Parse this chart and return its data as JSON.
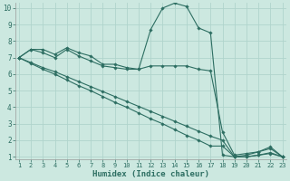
{
  "xlabel": "Humidex (Indice chaleur)",
  "background_color": "#cce8e0",
  "grid_color": "#b0d4cc",
  "line_color": "#2d6e62",
  "xlim": [
    1,
    23
  ],
  "ylim": [
    1,
    10
  ],
  "xticks": [
    1,
    2,
    3,
    4,
    5,
    6,
    7,
    8,
    9,
    10,
    11,
    12,
    13,
    14,
    15,
    16,
    17,
    18,
    19,
    20,
    21,
    22,
    23
  ],
  "yticks": [
    1,
    2,
    3,
    4,
    5,
    6,
    7,
    8,
    9,
    10
  ],
  "series": [
    [
      7.0,
      7.5,
      7.5,
      7.2,
      7.6,
      7.3,
      7.1,
      6.6,
      6.6,
      6.4,
      6.3,
      8.7,
      10.0,
      10.3,
      10.1,
      8.8,
      8.5,
      1.1,
      1.0,
      1.1,
      1.3,
      1.6,
      1.0
    ],
    [
      7.0,
      7.5,
      7.3,
      7.0,
      7.5,
      7.1,
      6.8,
      6.5,
      6.4,
      6.3,
      6.3,
      6.5,
      6.5,
      6.5,
      6.5,
      6.3,
      6.2,
      2.5,
      1.1,
      1.2,
      1.3,
      1.5,
      1.0
    ],
    [
      7.0,
      6.65,
      6.3,
      6.0,
      5.65,
      5.3,
      5.0,
      4.65,
      4.3,
      4.0,
      3.65,
      3.3,
      3.0,
      2.65,
      2.3,
      2.0,
      1.65,
      1.65,
      1.0,
      1.0,
      1.1,
      1.2,
      1.0
    ],
    [
      7.0,
      6.7,
      6.4,
      6.15,
      5.85,
      5.55,
      5.25,
      4.95,
      4.65,
      4.35,
      4.05,
      3.75,
      3.45,
      3.15,
      2.85,
      2.55,
      2.25,
      2.0,
      1.0,
      1.0,
      1.1,
      1.25,
      1.0
    ]
  ]
}
